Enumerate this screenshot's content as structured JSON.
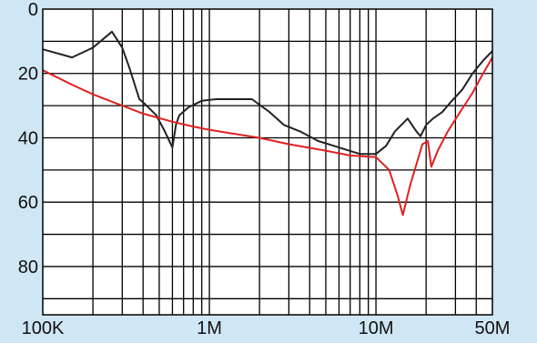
{
  "chart_data": {
    "type": "line",
    "x_scale": "log",
    "xlim": [
      100000,
      50000000
    ],
    "ylim": [
      0,
      95
    ],
    "y_inverted": true,
    "grid": true,
    "legend": "none",
    "colors": {
      "background": "#cfe6f5",
      "plot_area": "#ffffff",
      "grid": "#000000"
    },
    "x_tick_labels": [
      {
        "value": 100000,
        "label": "100K"
      },
      {
        "value": 1000000,
        "label": "1M"
      },
      {
        "value": 10000000,
        "label": "10M"
      },
      {
        "value": 50000000,
        "label": "50M"
      }
    ],
    "y_tick_labels": [
      {
        "value": 0,
        "label": "0"
      },
      {
        "value": 20,
        "label": "20"
      },
      {
        "value": 40,
        "label": "40"
      },
      {
        "value": 60,
        "label": "60"
      },
      {
        "value": 80,
        "label": "80"
      }
    ],
    "series": [
      {
        "color": "#222222",
        "x": [
          100000,
          150000,
          200000,
          260000,
          300000,
          330000,
          380000,
          410000,
          480000,
          540000,
          600000,
          630000,
          660000,
          750000,
          900000,
          1100000,
          1400000,
          1800000,
          2300000,
          2800000,
          3500000,
          4500000,
          6000000,
          8000000,
          10000000,
          11500000,
          13000000,
          15500000,
          17500000,
          18500000,
          20000000,
          22000000,
          25000000,
          28000000,
          33000000,
          38000000,
          44000000,
          50000000
        ],
        "y": [
          12.5,
          15,
          12,
          7,
          12,
          18,
          28,
          29.5,
          33,
          38,
          43,
          36,
          33,
          30.5,
          28.5,
          28,
          28,
          28,
          32,
          36,
          38,
          41,
          43,
          45,
          45,
          42.5,
          38,
          34,
          38,
          39.5,
          36,
          34,
          32,
          29,
          25,
          20,
          16,
          13
        ]
      },
      {
        "color": "#e02020",
        "x": [
          100000,
          150000,
          200000,
          300000,
          400000,
          600000,
          800000,
          1000000,
          1500000,
          2000000,
          3000000,
          5000000,
          7000000,
          10000000,
          12000000,
          13500000,
          14500000,
          16000000,
          19000000,
          20500000,
          21500000,
          23500000,
          27000000,
          32000000,
          38000000,
          44000000,
          50000000
        ],
        "y": [
          19,
          23.5,
          26.5,
          30,
          32.5,
          35,
          36.5,
          37.5,
          39,
          40,
          42,
          44,
          45.5,
          46,
          50,
          58,
          64,
          55,
          42,
          41,
          49,
          44,
          38,
          32,
          26,
          20,
          15
        ]
      }
    ]
  }
}
